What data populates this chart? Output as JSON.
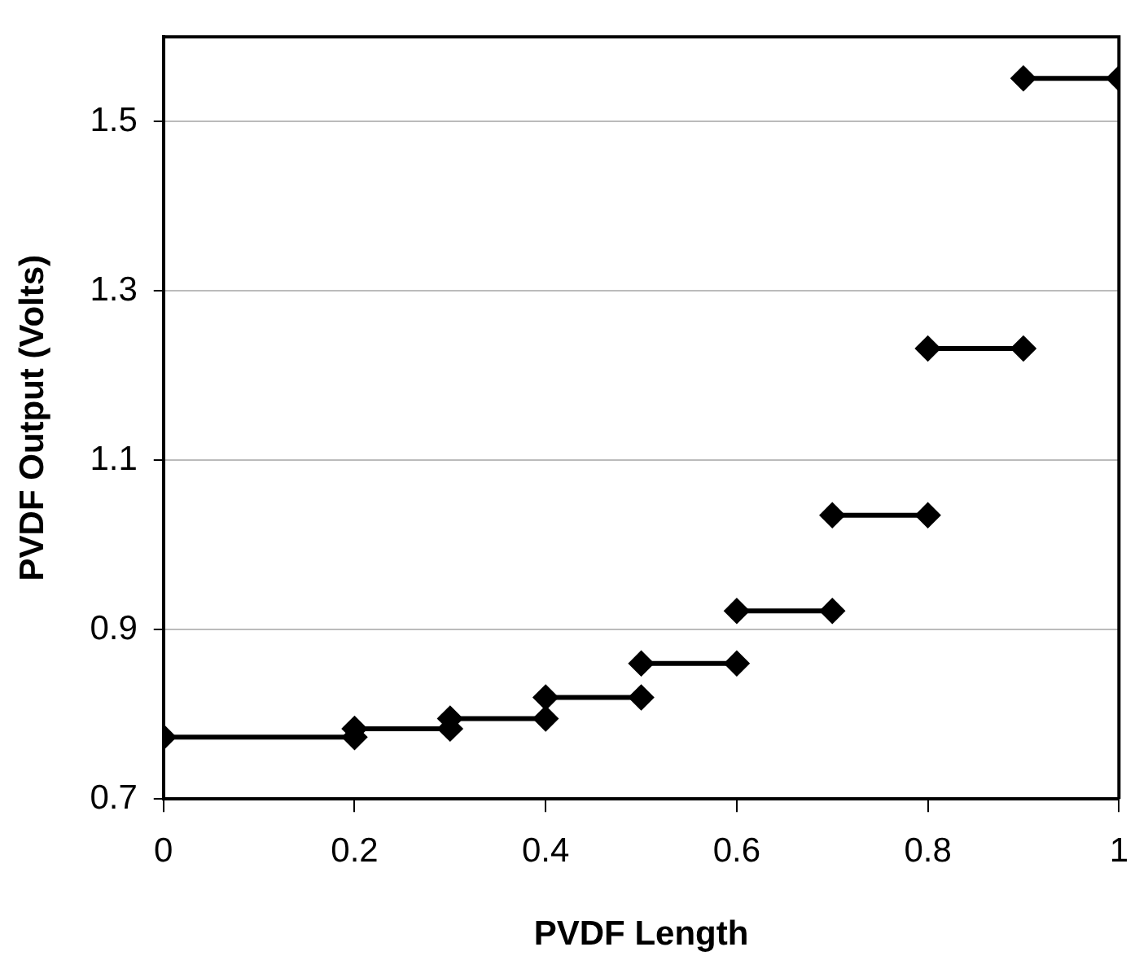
{
  "chart_data": {
    "type": "line",
    "xlabel": "PVDF Length",
    "ylabel": "PVDF Output (Volts)",
    "xlim": [
      0,
      1
    ],
    "xticks": [
      0,
      0.2,
      0.4,
      0.6,
      0.8,
      1
    ],
    "ylim": [
      0.7,
      1.6
    ],
    "yticks": [
      0.7,
      0.9,
      1.1,
      1.3,
      1.5
    ],
    "grid": "y",
    "legend": false,
    "marker": "diamond",
    "line_style": "solid",
    "series": [
      {
        "color": "#000000",
        "x": [
          0,
          0.2
        ],
        "values": [
          0.773,
          0.773
        ]
      },
      {
        "color": "#000000",
        "x": [
          0.2,
          0.3
        ],
        "values": [
          0.783,
          0.783
        ]
      },
      {
        "color": "#000000",
        "x": [
          0.3,
          0.4
        ],
        "values": [
          0.795,
          0.795
        ]
      },
      {
        "color": "#000000",
        "x": [
          0.4,
          0.5
        ],
        "values": [
          0.82,
          0.82
        ]
      },
      {
        "color": "#000000",
        "x": [
          0.5,
          0.6
        ],
        "values": [
          0.86,
          0.86
        ]
      },
      {
        "color": "#000000",
        "x": [
          0.6,
          0.7
        ],
        "values": [
          0.922,
          0.922
        ]
      },
      {
        "color": "#000000",
        "x": [
          0.7,
          0.8
        ],
        "values": [
          1.035,
          1.035
        ]
      },
      {
        "color": "#000000",
        "x": [
          0.8,
          0.9
        ],
        "values": [
          1.232,
          1.232
        ]
      },
      {
        "color": "#000000",
        "x": [
          0.9,
          1
        ],
        "values": [
          1.551,
          1.551
        ]
      }
    ]
  }
}
